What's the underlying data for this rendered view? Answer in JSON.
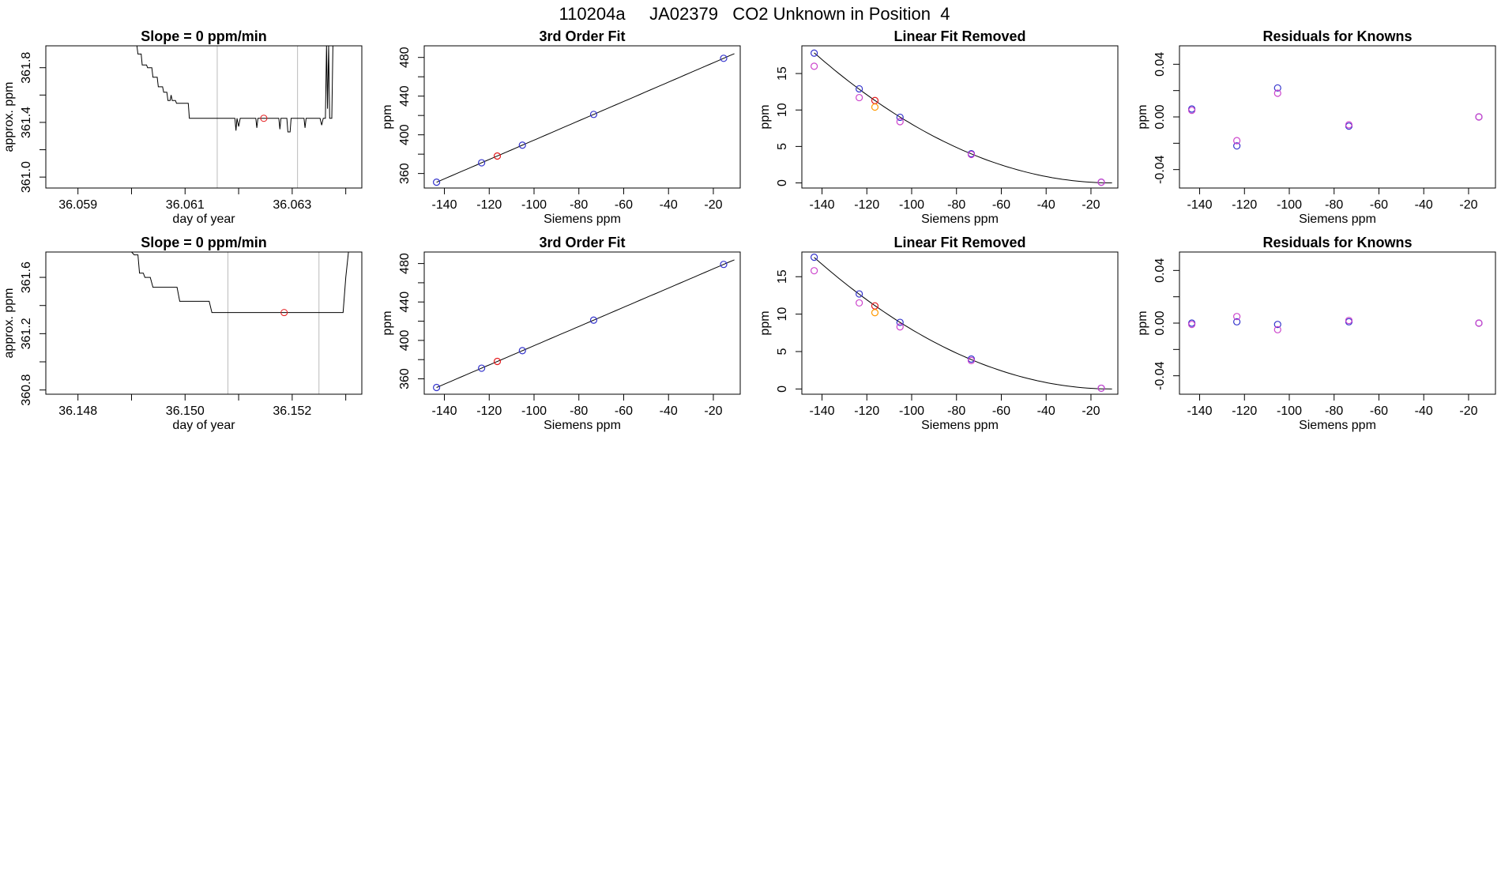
{
  "figure_title": "110204a     JA02379   CO2 Unknown in Position  4",
  "chart_data": [
    {
      "panel": "row1-col1",
      "type": "line",
      "title": "Slope =  0  ppm/min",
      "xlabel": "day of year",
      "ylabel": "approx. ppm",
      "xlim": [
        36.0584,
        36.0643
      ],
      "ylim": [
        360.92,
        361.96
      ],
      "xticks": [
        36.059,
        36.06,
        36.061,
        36.062,
        36.063,
        36.064
      ],
      "xticklabels": [
        "36.059",
        "",
        "36.061",
        "",
        "36.063",
        ""
      ],
      "yticks": [
        361.0,
        361.2,
        361.4,
        361.6,
        361.8
      ],
      "yticklabels": [
        "361.0",
        "",
        "361.4",
        "",
        "361.8"
      ],
      "vlines": [
        36.0616,
        36.0631
      ],
      "series": [
        {
          "color": "#000000",
          "points": [
            [
              36.0601,
              361.96
            ],
            [
              36.06012,
              361.9
            ],
            [
              36.06018,
              361.9
            ],
            [
              36.0602,
              361.82
            ],
            [
              36.06028,
              361.82
            ],
            [
              36.0603,
              361.8
            ],
            [
              36.06038,
              361.8
            ],
            [
              36.0604,
              361.73
            ],
            [
              36.06048,
              361.73
            ],
            [
              36.0605,
              361.66
            ],
            [
              36.06058,
              361.66
            ],
            [
              36.0606,
              361.62
            ],
            [
              36.06066,
              361.62
            ],
            [
              36.06068,
              361.56
            ],
            [
              36.06072,
              361.56
            ],
            [
              36.06074,
              361.6
            ],
            [
              36.06076,
              361.56
            ],
            [
              36.06082,
              361.56
            ],
            [
              36.06084,
              361.54
            ],
            [
              36.06106,
              361.54
            ],
            [
              36.06108,
              361.43
            ],
            [
              36.06193,
              361.43
            ],
            [
              36.06195,
              361.34
            ],
            [
              36.06197,
              361.43
            ],
            [
              36.062,
              361.37
            ],
            [
              36.06203,
              361.43
            ],
            [
              36.06232,
              361.43
            ],
            [
              36.06234,
              361.36
            ],
            [
              36.06236,
              361.43
            ],
            [
              36.06275,
              361.43
            ],
            [
              36.06277,
              361.35
            ],
            [
              36.06279,
              361.43
            ],
            [
              36.0629,
              361.43
            ],
            [
              36.06292,
              361.33
            ],
            [
              36.06296,
              361.33
            ],
            [
              36.06298,
              361.43
            ],
            [
              36.06322,
              361.43
            ],
            [
              36.06324,
              361.36
            ],
            [
              36.06326,
              361.43
            ],
            [
              36.06352,
              361.43
            ],
            [
              36.06355,
              361.38
            ],
            [
              36.06358,
              361.43
            ],
            [
              36.06362,
              361.43
            ],
            [
              36.06364,
              361.96
            ],
            [
              36.06366,
              361.5
            ],
            [
              36.06368,
              361.96
            ],
            [
              36.0637,
              361.43
            ],
            [
              36.06374,
              361.43
            ],
            [
              36.06376,
              361.96
            ]
          ]
        }
      ],
      "marker": {
        "x": 36.06247,
        "y": 361.43,
        "color": "#e41a1c"
      }
    },
    {
      "panel": "row1-col2",
      "type": "scatter",
      "title": "3rd Order Fit",
      "xlabel": "Siemens ppm",
      "ylabel": "ppm",
      "xlim": [
        -149,
        -8
      ],
      "ylim": [
        345,
        492
      ],
      "xticks": [
        -140,
        -120,
        -100,
        -80,
        -60,
        -40,
        -20
      ],
      "xticklabels": [
        "-140",
        "-120",
        "-100",
        "-80",
        "-60",
        "-40",
        "-20"
      ],
      "yticks": [
        360,
        380,
        400,
        420,
        440,
        460,
        480
      ],
      "yticklabels": [
        "360",
        "",
        "400",
        "",
        "440",
        "",
        "480"
      ],
      "curve_x": [
        -143.5,
        -10.6
      ],
      "curve_coeffs": [
        494.5,
        1.0,
        0.0,
        0.0
      ],
      "points": [
        {
          "x": -143.5,
          "y": 351.0,
          "color": "#3333cc"
        },
        {
          "x": -123.4,
          "y": 371.1,
          "color": "#3333cc"
        },
        {
          "x": -105.2,
          "y": 389.3,
          "color": "#3333cc"
        },
        {
          "x": -73.4,
          "y": 421.1,
          "color": "#3333cc"
        },
        {
          "x": -15.4,
          "y": 479.1,
          "color": "#3333cc"
        },
        {
          "x": -116.4,
          "y": 378.1,
          "color": "#e41a1c"
        }
      ]
    },
    {
      "panel": "row1-col3",
      "type": "scatter",
      "title": "Linear Fit Removed",
      "xlabel": "Siemens ppm",
      "ylabel": "ppm",
      "xlim": [
        -149,
        -8
      ],
      "ylim": [
        -0.7,
        18.8
      ],
      "xticks": [
        -140,
        -120,
        -100,
        -80,
        -60,
        -40,
        -20
      ],
      "xticklabels": [
        "-140",
        "-120",
        "-100",
        "-80",
        "-60",
        "-40",
        "-20"
      ],
      "yticks": [
        0,
        5,
        10,
        15
      ],
      "yticklabels": [
        "0",
        "5",
        "10",
        "15"
      ],
      "curve_x": [
        -143.5,
        -10.6
      ],
      "curve_quadratic": {
        "vertex_x": -10.6,
        "a": 0.00101
      },
      "points": [
        {
          "x": -143.5,
          "y": 17.8,
          "color": "#3333cc"
        },
        {
          "x": -123.4,
          "y": 12.9,
          "color": "#3333cc"
        },
        {
          "x": -105.2,
          "y": 9.0,
          "color": "#3333cc"
        },
        {
          "x": -73.4,
          "y": 4.0,
          "color": "#3333cc"
        },
        {
          "x": -15.4,
          "y": 0.1,
          "color": "#3333cc"
        },
        {
          "x": -143.5,
          "y": 16.0,
          "color": "#cc44cc"
        },
        {
          "x": -123.4,
          "y": 11.7,
          "color": "#cc44cc"
        },
        {
          "x": -105.2,
          "y": 8.4,
          "color": "#cc44cc"
        },
        {
          "x": -73.4,
          "y": 3.9,
          "color": "#cc44cc"
        },
        {
          "x": -15.4,
          "y": 0.1,
          "color": "#cc44cc"
        },
        {
          "x": -116.4,
          "y": 11.3,
          "color": "#e41a1c"
        },
        {
          "x": -116.4,
          "y": 10.4,
          "color": "#ff9900"
        }
      ]
    },
    {
      "panel": "row1-col4",
      "type": "scatter",
      "title": "Residuals for Knowns",
      "xlabel": "Siemens ppm",
      "ylabel": "ppm",
      "xlim": [
        -149,
        -8
      ],
      "ylim": [
        -0.054,
        0.054
      ],
      "xticks": [
        -140,
        -120,
        -100,
        -80,
        -60,
        -40,
        -20
      ],
      "xticklabels": [
        "-140",
        "-120",
        "-100",
        "-80",
        "-60",
        "-40",
        "-20"
      ],
      "yticks": [
        -0.04,
        -0.02,
        0.0,
        0.02,
        0.04
      ],
      "yticklabels": [
        "-0.04",
        "",
        "0.00",
        "",
        "0.04"
      ],
      "points": [
        {
          "x": -143.5,
          "y": 0.006,
          "color": "#3333cc"
        },
        {
          "x": -123.4,
          "y": -0.022,
          "color": "#3333cc"
        },
        {
          "x": -105.2,
          "y": 0.022,
          "color": "#3333cc"
        },
        {
          "x": -73.4,
          "y": -0.007,
          "color": "#3333cc"
        },
        {
          "x": -15.4,
          "y": 0.0,
          "color": "#3333cc"
        },
        {
          "x": -143.5,
          "y": 0.005,
          "color": "#cc44cc"
        },
        {
          "x": -123.4,
          "y": -0.018,
          "color": "#cc44cc"
        },
        {
          "x": -105.2,
          "y": 0.018,
          "color": "#cc44cc"
        },
        {
          "x": -73.4,
          "y": -0.006,
          "color": "#cc44cc"
        },
        {
          "x": -15.4,
          "y": 0.0,
          "color": "#cc44cc"
        }
      ]
    },
    {
      "panel": "row2-col1",
      "type": "line",
      "title": "Slope =  0  ppm/min",
      "xlabel": "day of year",
      "ylabel": "approx. ppm",
      "xlim": [
        36.1474,
        36.1533
      ],
      "ylim": [
        360.77,
        361.78
      ],
      "xticks": [
        36.148,
        36.149,
        36.15,
        36.151,
        36.152,
        36.153
      ],
      "xticklabels": [
        "36.148",
        "",
        "36.150",
        "",
        "36.152",
        ""
      ],
      "yticks": [
        360.8,
        361.0,
        361.2,
        361.4,
        361.6
      ],
      "yticklabels": [
        "360.8",
        "",
        "361.2",
        "",
        "361.6"
      ],
      "vlines": [
        36.1508,
        36.1525
      ],
      "series": [
        {
          "color": "#000000",
          "points": [
            [
              36.149,
              361.78
            ],
            [
              36.14905,
              361.76
            ],
            [
              36.14912,
              361.76
            ],
            [
              36.14915,
              361.63
            ],
            [
              36.14922,
              361.63
            ],
            [
              36.14925,
              361.6
            ],
            [
              36.14935,
              361.6
            ],
            [
              36.1494,
              361.53
            ],
            [
              36.14985,
              361.53
            ],
            [
              36.1499,
              361.43
            ],
            [
              36.15045,
              361.43
            ],
            [
              36.1505,
              361.35
            ],
            [
              36.15295,
              361.35
            ],
            [
              36.153,
              361.6
            ],
            [
              36.15305,
              361.78
            ]
          ]
        }
      ],
      "marker": {
        "x": 36.15185,
        "y": 361.35,
        "color": "#e41a1c"
      }
    },
    {
      "panel": "row2-col2",
      "type": "scatter",
      "title": "3rd Order Fit",
      "xlabel": "Siemens ppm",
      "ylabel": "ppm",
      "xlim": [
        -149,
        -8
      ],
      "ylim": [
        344,
        492
      ],
      "xticks": [
        -140,
        -120,
        -100,
        -80,
        -60,
        -40,
        -20
      ],
      "xticklabels": [
        "-140",
        "-120",
        "-100",
        "-80",
        "-60",
        "-40",
        "-20"
      ],
      "yticks": [
        360,
        380,
        400,
        420,
        440,
        460,
        480
      ],
      "yticklabels": [
        "360",
        "",
        "400",
        "",
        "440",
        "",
        "480"
      ],
      "curve_x": [
        -143.5,
        -10.6
      ],
      "curve_coeffs": [
        494.5,
        1.0,
        0.0,
        0.0
      ],
      "points": [
        {
          "x": -143.5,
          "y": 351.0,
          "color": "#3333cc"
        },
        {
          "x": -123.4,
          "y": 371.1,
          "color": "#3333cc"
        },
        {
          "x": -105.2,
          "y": 389.3,
          "color": "#3333cc"
        },
        {
          "x": -73.4,
          "y": 421.1,
          "color": "#3333cc"
        },
        {
          "x": -15.4,
          "y": 479.1,
          "color": "#3333cc"
        },
        {
          "x": -116.4,
          "y": 378.1,
          "color": "#e41a1c"
        }
      ]
    },
    {
      "panel": "row2-col3",
      "type": "scatter",
      "title": "Linear Fit Removed",
      "xlabel": "Siemens ppm",
      "ylabel": "ppm",
      "xlim": [
        -149,
        -8
      ],
      "ylim": [
        -0.7,
        18.3
      ],
      "xticks": [
        -140,
        -120,
        -100,
        -80,
        -60,
        -40,
        -20
      ],
      "xticklabels": [
        "-140",
        "-120",
        "-100",
        "-80",
        "-60",
        "-40",
        "-20"
      ],
      "yticks": [
        0,
        5,
        10,
        15
      ],
      "yticklabels": [
        "0",
        "5",
        "10",
        "15"
      ],
      "curve_x": [
        -143.5,
        -10.6
      ],
      "curve_quadratic": {
        "vertex_x": -10.6,
        "a": 0.000995
      },
      "points": [
        {
          "x": -143.5,
          "y": 17.6,
          "color": "#3333cc"
        },
        {
          "x": -123.4,
          "y": 12.7,
          "color": "#3333cc"
        },
        {
          "x": -105.2,
          "y": 8.9,
          "color": "#3333cc"
        },
        {
          "x": -73.4,
          "y": 4.0,
          "color": "#3333cc"
        },
        {
          "x": -15.4,
          "y": 0.1,
          "color": "#3333cc"
        },
        {
          "x": -143.5,
          "y": 15.8,
          "color": "#cc44cc"
        },
        {
          "x": -123.4,
          "y": 11.5,
          "color": "#cc44cc"
        },
        {
          "x": -105.2,
          "y": 8.3,
          "color": "#cc44cc"
        },
        {
          "x": -73.4,
          "y": 3.8,
          "color": "#cc44cc"
        },
        {
          "x": -15.4,
          "y": 0.1,
          "color": "#cc44cc"
        },
        {
          "x": -116.4,
          "y": 11.1,
          "color": "#e41a1c"
        },
        {
          "x": -116.4,
          "y": 10.2,
          "color": "#ff9900"
        }
      ]
    },
    {
      "panel": "row2-col4",
      "type": "scatter",
      "title": "Residuals for Knowns",
      "xlabel": "Siemens ppm",
      "ylabel": "ppm",
      "xlim": [
        -149,
        -8
      ],
      "ylim": [
        -0.054,
        0.054
      ],
      "xticks": [
        -140,
        -120,
        -100,
        -80,
        -60,
        -40,
        -20
      ],
      "xticklabels": [
        "-140",
        "-120",
        "-100",
        "-80",
        "-60",
        "-40",
        "-20"
      ],
      "yticks": [
        -0.04,
        -0.02,
        0.0,
        0.02,
        0.04
      ],
      "yticklabels": [
        "-0.04",
        "",
        "0.00",
        "",
        "0.04"
      ],
      "points": [
        {
          "x": -143.5,
          "y": 0.0,
          "color": "#3333cc"
        },
        {
          "x": -123.4,
          "y": 0.001,
          "color": "#3333cc"
        },
        {
          "x": -105.2,
          "y": -0.001,
          "color": "#3333cc"
        },
        {
          "x": -73.4,
          "y": 0.001,
          "color": "#3333cc"
        },
        {
          "x": -15.4,
          "y": 0.0,
          "color": "#3333cc"
        },
        {
          "x": -143.5,
          "y": -0.001,
          "color": "#cc44cc"
        },
        {
          "x": -123.4,
          "y": 0.005,
          "color": "#cc44cc"
        },
        {
          "x": -105.2,
          "y": -0.005,
          "color": "#cc44cc"
        },
        {
          "x": -73.4,
          "y": 0.002,
          "color": "#cc44cc"
        },
        {
          "x": -15.4,
          "y": 0.0,
          "color": "#cc44cc"
        }
      ]
    }
  ]
}
